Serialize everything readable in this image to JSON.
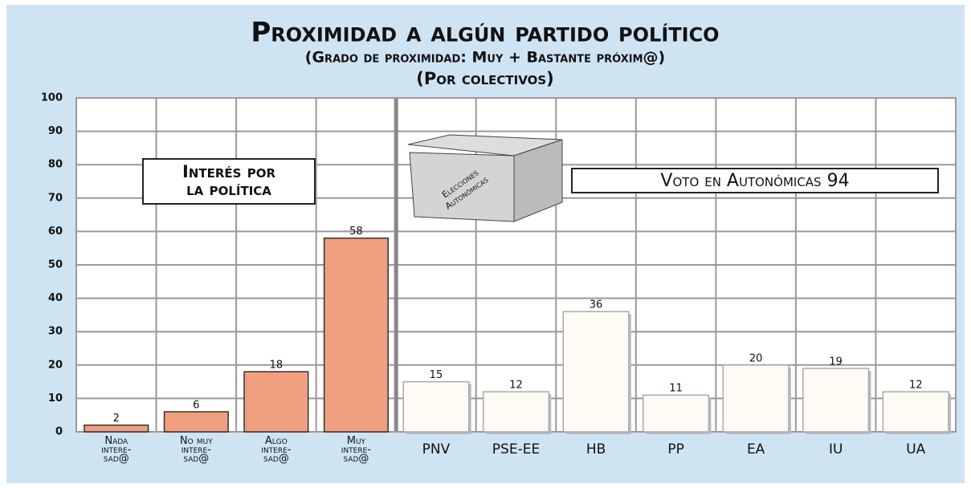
{
  "chart_data": {
    "type": "bar",
    "title": "Proximidad a algún partido político",
    "subtitle": "(Grado de proximidad: Muy + Bastante próxim@)",
    "subtitle2": "(Por colectivos)",
    "annotations": [
      "Interés por\nla política",
      "Voto en Autonómicas 94",
      "Elecciones\nAutonómicas"
    ],
    "categories": [
      "Nada\nintere-\nsad@",
      "No muy\nintere-\nsad@",
      "Algo\nintere-\nsad@",
      "Muy\nintere-\nsad@",
      "PNV",
      "PSE-EE",
      "HB",
      "PP",
      "EA",
      "IU",
      "UA"
    ],
    "values": [
      2,
      6,
      18,
      58,
      15,
      12,
      36,
      11,
      20,
      19,
      12
    ],
    "colors": [
      "#f0a080",
      "#f0a080",
      "#f0a080",
      "#f0a080",
      "#fdfbf4",
      "#fdfbf4",
      "#fdfbf4",
      "#fdfbf4",
      "#fdfbf4",
      "#fdfbf4",
      "#fdfbf4"
    ],
    "ylim": [
      0,
      100
    ],
    "yticks": [
      0,
      10,
      20,
      30,
      40,
      50,
      60,
      70,
      80,
      90,
      100
    ],
    "grid": true
  }
}
